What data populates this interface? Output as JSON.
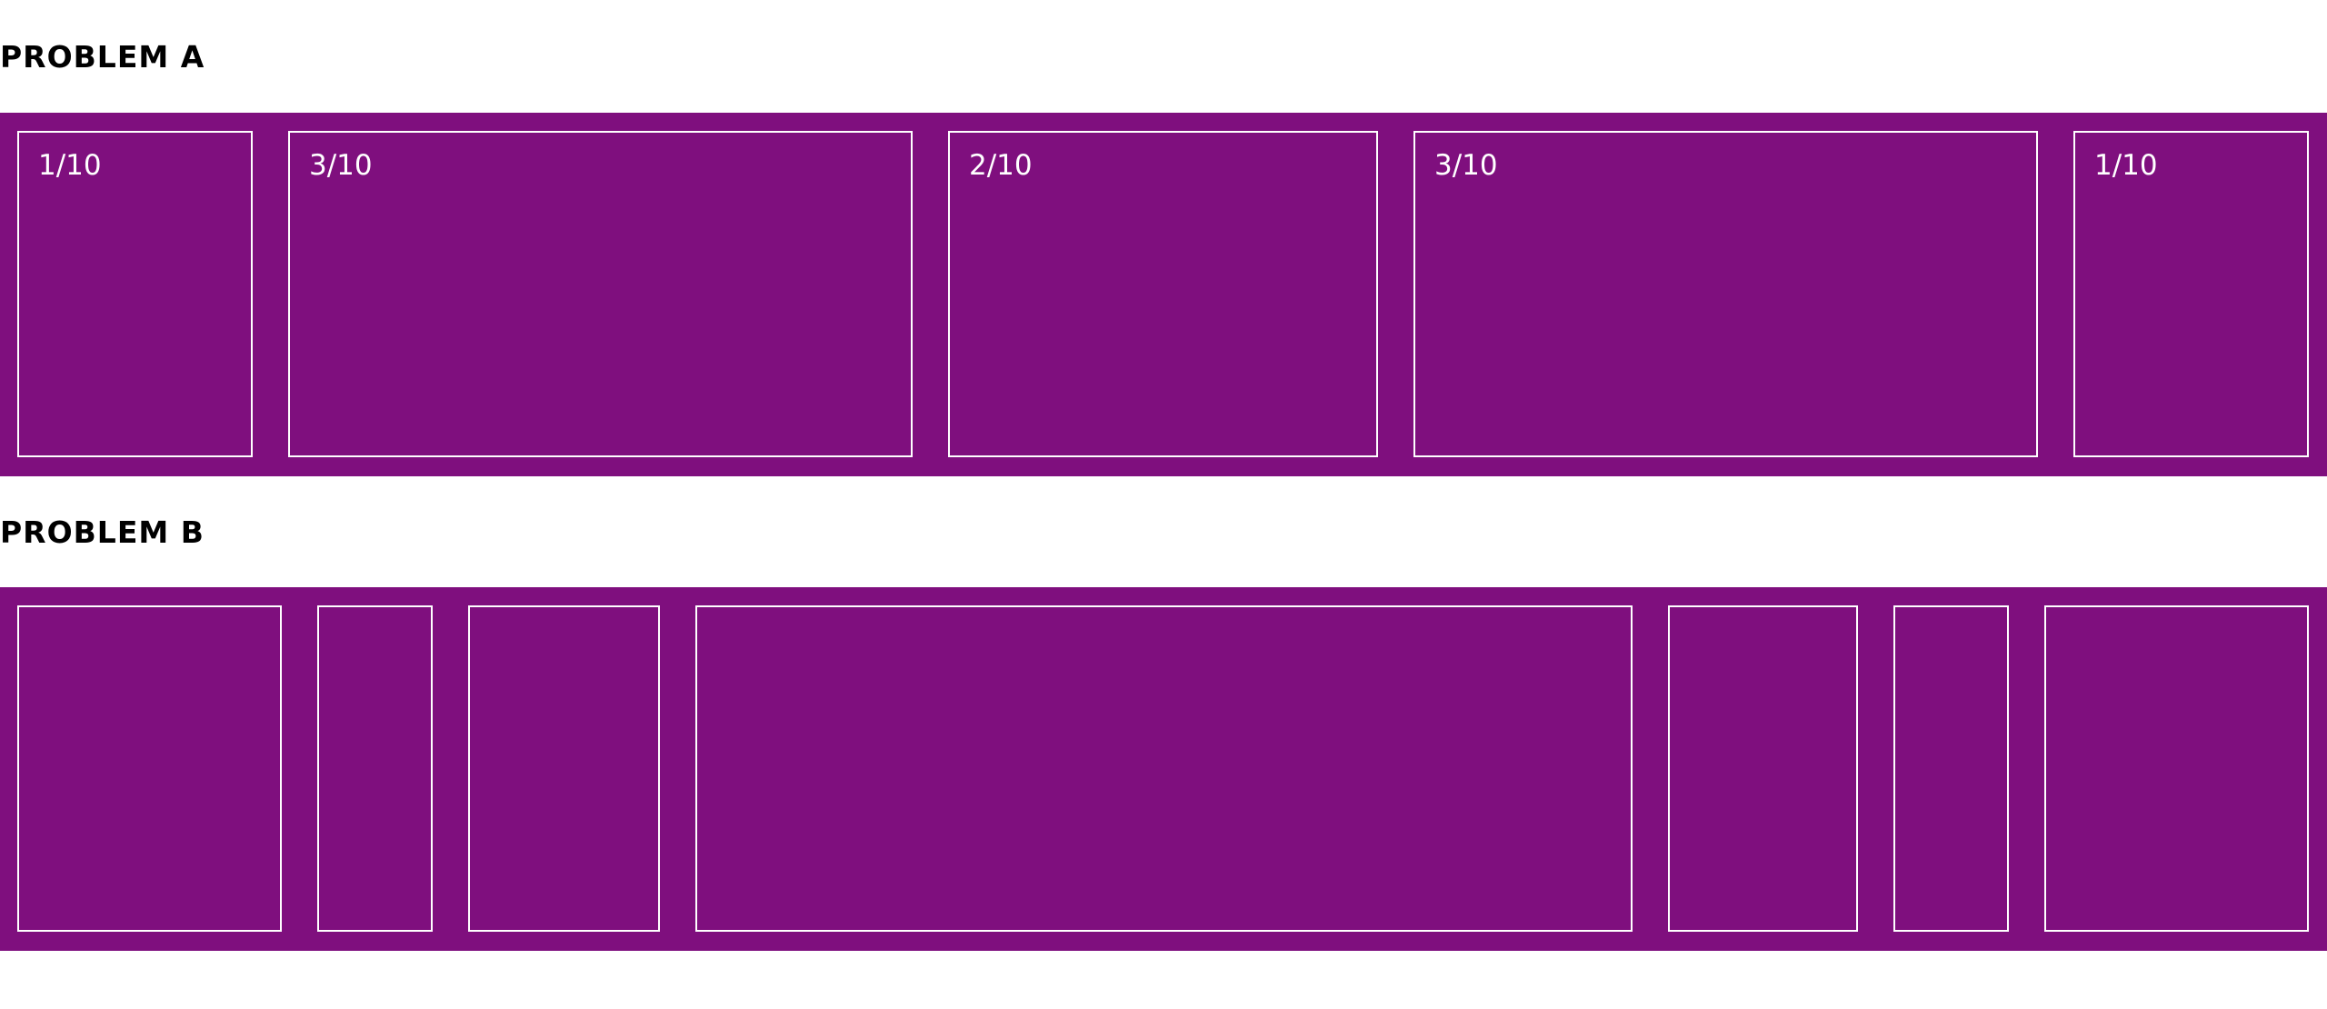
{
  "problem_a": {
    "title": "PROBLEM A",
    "cells": [
      {
        "label": "1/10"
      },
      {
        "label": "3/10"
      },
      {
        "label": "2/10"
      },
      {
        "label": "3/10"
      },
      {
        "label": "1/10"
      }
    ]
  },
  "problem_b": {
    "title": "PROBLEM B",
    "cell_count": 7
  },
  "colors": {
    "band": "#7f0f7e",
    "cell_border": "#ffffff",
    "heading": "#000000",
    "background": "#ffffff"
  }
}
